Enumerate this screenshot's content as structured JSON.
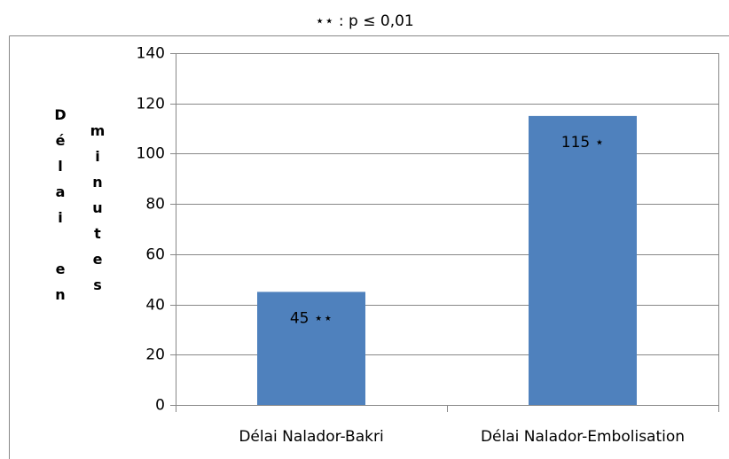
{
  "chart_data": {
    "type": "bar",
    "title": "⋆⋆ : p ≤ 0,01",
    "y_label_lines": [
      "Délai en",
      "minutes"
    ],
    "categories": [
      "Délai Nalador-Bakri",
      "Délai Nalador-Embolisation"
    ],
    "values": [
      45,
      115
    ],
    "value_labels": [
      "45 ⋆⋆",
      "115 ⋆"
    ],
    "color": "#4f81bd",
    "ylim": [
      0,
      140
    ],
    "yticks": [
      0,
      20,
      40,
      60,
      80,
      100,
      120,
      140
    ],
    "grid": true
  }
}
